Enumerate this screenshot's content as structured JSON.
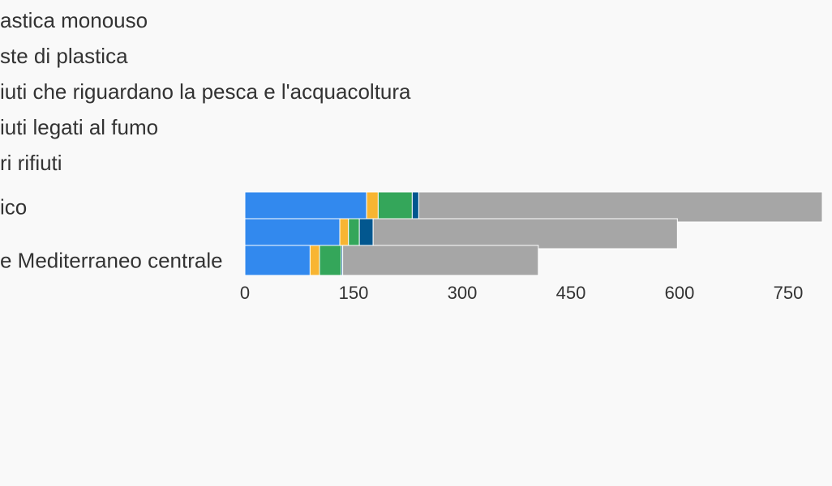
{
  "chart_data": {
    "type": "stacked-bar-horizontal",
    "categories": [
      "ico",
      null,
      "e Mediterraneo centrale"
    ],
    "series": [
      {
        "name": "astica monouso",
        "color": "#3289ee",
        "values": [
          168,
          131,
          90
        ]
      },
      {
        "name": "ste di plastica",
        "color": "#f8b532",
        "values": [
          16,
          12,
          13
        ]
      },
      {
        "name": "iuti che riguardano la pesca e l'acquacoltura",
        "color": "#34a65a",
        "values": [
          47,
          15,
          30
        ]
      },
      {
        "name": "iuti legati al fumo",
        "color": "#02578f",
        "values": [
          9,
          19,
          2
        ]
      },
      {
        "name": "ri rifiuti",
        "color": "#a6a6a6",
        "values": [
          557,
          420,
          270
        ]
      }
    ],
    "xlim": [
      0,
      800
    ],
    "xticks": [
      0,
      150,
      300,
      450,
      600,
      750
    ],
    "grid": false,
    "legend": "top"
  }
}
